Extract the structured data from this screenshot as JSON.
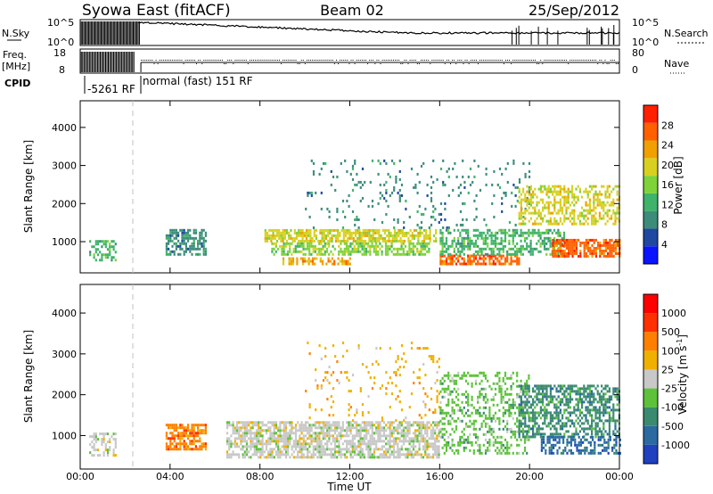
{
  "header": {
    "station": "Syowa East (fitACF)",
    "beam": "Beam 02",
    "date": "25/Sep/2012"
  },
  "top_panels": {
    "nsky_label": "N.Sky",
    "nsky_ticks": [
      "10^5",
      "10^0"
    ],
    "nsearch_label": "N.Search",
    "freq_label_1": "Freq.",
    "freq_label_2": "[MHz]",
    "freq_ticks": [
      "18",
      "8"
    ],
    "nave_ticks": [
      "80",
      "0"
    ],
    "nave_label": "Nave",
    "cpid_label": "CPID",
    "cpid_segments": [
      {
        "label": "-5261 RF",
        "start": 0.0,
        "end": 2.5
      },
      {
        "label": "normal (fast) 151 RF",
        "start": 2.5,
        "end": 24.0
      }
    ]
  },
  "chart_data": [
    {
      "type": "heatmap",
      "name": "power-panel",
      "xlabel": "Time UT",
      "ylabel": "Slant Range [km]",
      "x_ticks": [
        "00:00",
        "04:00",
        "08:00",
        "12:00",
        "16:00",
        "20:00",
        "00:00"
      ],
      "x_tick_hours": [
        0,
        4,
        8,
        12,
        16,
        20,
        24
      ],
      "xlim": [
        0,
        24
      ],
      "ylim": [
        180,
        4700
      ],
      "y_ticks": [
        1000,
        2000,
        3000,
        4000
      ],
      "colorbar_label": "Power [dB]",
      "colorbar_ticks": [
        "4",
        "8",
        "12",
        "16",
        "20",
        "24",
        "28"
      ],
      "colorbar_range": [
        0,
        32
      ],
      "colors": [
        "#0a14ff",
        "#2048a0",
        "#3d8c7a",
        "#3fb36a",
        "#7fd23a",
        "#d8d020",
        "#f0a000",
        "#ff6000",
        "#ff2000"
      ],
      "echo_regions": [
        {
          "t0": 0.4,
          "t1": 1.6,
          "r0": 550,
          "r1": 1100,
          "value": 12,
          "density": 0.55
        },
        {
          "t0": 3.8,
          "t1": 5.6,
          "r0": 700,
          "r1": 1350,
          "value": 9,
          "density": 0.6
        },
        {
          "t0": 8.2,
          "t1": 15.8,
          "r0": 1050,
          "r1": 1350,
          "value": 20,
          "density": 0.75
        },
        {
          "t0": 8.5,
          "t1": 15.5,
          "r0": 700,
          "r1": 1000,
          "value": 16,
          "density": 0.6
        },
        {
          "t0": 9.0,
          "t1": 12.0,
          "r0": 450,
          "r1": 650,
          "value": 26,
          "density": 0.6
        },
        {
          "t0": 16.0,
          "t1": 19.5,
          "r0": 450,
          "r1": 700,
          "value": 28,
          "density": 0.65
        },
        {
          "t0": 10.0,
          "t1": 20.0,
          "r0": 1400,
          "r1": 3200,
          "value": 8,
          "density": 0.08
        },
        {
          "t0": 16.0,
          "t1": 21.5,
          "r0": 700,
          "r1": 1400,
          "value": 12,
          "density": 0.5
        },
        {
          "t0": 19.5,
          "t1": 24.0,
          "r0": 1500,
          "r1": 2500,
          "value": 22,
          "density": 0.5
        },
        {
          "t0": 21.0,
          "t1": 24.0,
          "r0": 650,
          "r1": 1100,
          "value": 30,
          "density": 0.75
        }
      ]
    },
    {
      "type": "heatmap",
      "name": "velocity-panel",
      "xlabel": "Time UT",
      "ylabel": "Slant Range [km]",
      "x_ticks": [
        "00:00",
        "04:00",
        "08:00",
        "12:00",
        "16:00",
        "20:00",
        "00:00"
      ],
      "x_tick_hours": [
        0,
        4,
        8,
        12,
        16,
        20,
        24
      ],
      "xlim": [
        0,
        24
      ],
      "ylim": [
        180,
        4700
      ],
      "y_ticks": [
        1000,
        2000,
        3000,
        4000
      ],
      "colorbar_label": "Velocity [m s^-1]",
      "colorbar_ticks": [
        "1000",
        "500",
        "100",
        "25",
        "-25",
        "-100",
        "-500",
        "-1000"
      ],
      "colors": [
        "#2040c0",
        "#2a6aa0",
        "#3a8a70",
        "#5dc23a",
        "#c8c8c8",
        "#f0b000",
        "#ff8000",
        "#ff3000",
        "#ff0000"
      ],
      "echo_regions": [
        {
          "t0": 0.4,
          "t1": 1.6,
          "r0": 550,
          "r1": 1100,
          "color": 4,
          "density": 0.5
        },
        {
          "t0": 3.8,
          "t1": 5.6,
          "r0": 700,
          "r1": 1300,
          "color": 6,
          "density": 0.7
        },
        {
          "t0": 6.5,
          "t1": 16.0,
          "r0": 500,
          "r1": 1400,
          "color": 4,
          "density": 0.7
        },
        {
          "t0": 10.0,
          "t1": 16.0,
          "r0": 1400,
          "r1": 3300,
          "color": 5,
          "density": 0.07
        },
        {
          "t0": 16.0,
          "t1": 20.0,
          "r0": 600,
          "r1": 2600,
          "color": 3,
          "density": 0.35
        },
        {
          "t0": 19.5,
          "t1": 24.0,
          "r0": 1000,
          "r1": 2300,
          "color": 2,
          "density": 0.55
        },
        {
          "t0": 20.5,
          "t1": 24.0,
          "r0": 600,
          "r1": 1000,
          "color": 1,
          "density": 0.55
        }
      ]
    }
  ]
}
